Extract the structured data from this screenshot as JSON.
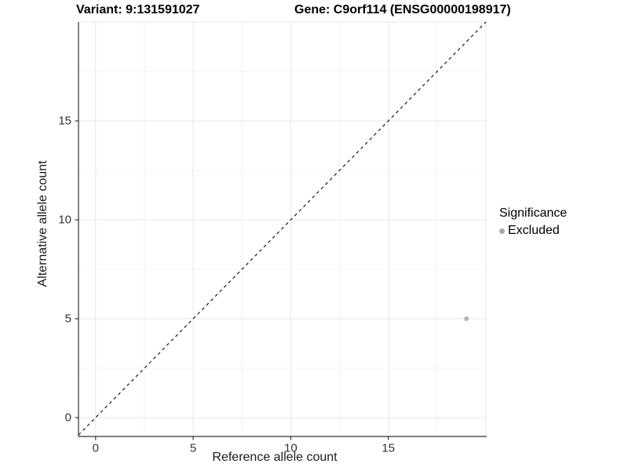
{
  "titles": {
    "left": "Variant: 9:131591027",
    "right": "Gene: C9orf114 (ENSG00000198917)"
  },
  "chart_data": {
    "type": "scatter",
    "title_left": "Variant: 9:131591027",
    "title_right": "Gene: C9orf114 (ENSG00000198917)",
    "xlabel": "Reference allele count",
    "ylabel": "Alternative allele count",
    "xlim": [
      -0.875,
      20.04
    ],
    "ylim": [
      -0.95,
      20.0
    ],
    "x_ticks": [
      0,
      5,
      10,
      15
    ],
    "y_ticks": [
      0,
      5,
      10,
      15
    ],
    "x_grid_major": [
      0,
      5,
      10,
      15,
      20
    ],
    "y_grid_major": [
      0,
      5,
      10,
      15,
      20
    ],
    "x_grid_minor": [
      2.5,
      7.5,
      12.5,
      17.5
    ],
    "y_grid_minor": [
      2.5,
      7.5,
      12.5,
      17.5
    ],
    "grid": true,
    "series": [
      {
        "name": "Excluded",
        "points": [
          {
            "x": 19,
            "y": 5
          }
        ]
      }
    ],
    "identity_line": {
      "style": "dashed",
      "slope": 1,
      "intercept": 0,
      "from": -0.875,
      "to": 20.0
    },
    "legend": {
      "title": "Significance",
      "position": "right",
      "items": [
        {
          "label": "Excluded",
          "color": "#a8a8a8"
        }
      ]
    }
  },
  "colors": {
    "point": "#b5b5b5",
    "axis_line": "#333333",
    "tick_mark": "#333333",
    "tick_label": "#333333",
    "grid_major": "#e7e7e7",
    "grid_minor": "#f3f3f3",
    "identity_line": "#1a1a1a",
    "background": "#ffffff"
  }
}
